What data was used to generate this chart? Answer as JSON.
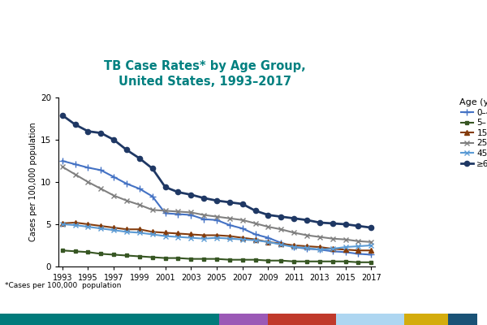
{
  "title": "TB Case Rates* by Age Group,\nUnited States, 1993–2017",
  "ylabel": "Cases per 100,000 population",
  "footnote": "*Cases per 100,000  population",
  "years": [
    1993,
    1994,
    1995,
    1996,
    1997,
    1998,
    1999,
    2000,
    2001,
    2002,
    2003,
    2004,
    2005,
    2006,
    2007,
    2008,
    2009,
    2010,
    2011,
    2012,
    2013,
    2014,
    2015,
    2016,
    2017
  ],
  "series": {
    "0–4": {
      "color": "#4472C4",
      "marker": "+",
      "ls": "-",
      "lw": 1.5,
      "ms": 6,
      "values": [
        12.5,
        12.1,
        11.7,
        11.4,
        10.6,
        9.8,
        9.2,
        8.3,
        6.3,
        6.2,
        6.1,
        5.6,
        5.5,
        4.9,
        4.5,
        3.8,
        3.4,
        2.8,
        2.3,
        2.1,
        2.0,
        1.8,
        1.7,
        1.5,
        1.4
      ]
    },
    "5–14": {
      "color": "#375623",
      "marker": "s",
      "ls": "-",
      "lw": 1.5,
      "ms": 3.5,
      "values": [
        1.9,
        1.8,
        1.7,
        1.5,
        1.4,
        1.3,
        1.2,
        1.1,
        1.0,
        1.0,
        0.9,
        0.9,
        0.9,
        0.8,
        0.8,
        0.8,
        0.7,
        0.7,
        0.6,
        0.6,
        0.6,
        0.6,
        0.6,
        0.5,
        0.5
      ]
    },
    "15–24": {
      "color": "#843C0C",
      "marker": "^",
      "ls": "-",
      "lw": 1.5,
      "ms": 4.5,
      "values": [
        5.1,
        5.2,
        5.0,
        4.8,
        4.6,
        4.4,
        4.4,
        4.1,
        4.0,
        3.9,
        3.8,
        3.7,
        3.7,
        3.6,
        3.4,
        3.2,
        2.9,
        2.7,
        2.5,
        2.4,
        2.3,
        2.1,
        2.0,
        1.9,
        1.9
      ]
    },
    "25–44": {
      "color": "#808080",
      "marker": "x",
      "ls": "-",
      "lw": 1.5,
      "ms": 4,
      "values": [
        11.8,
        10.9,
        10.0,
        9.2,
        8.4,
        7.8,
        7.3,
        6.7,
        6.6,
        6.5,
        6.4,
        6.1,
        5.9,
        5.7,
        5.5,
        5.1,
        4.7,
        4.4,
        4.0,
        3.7,
        3.5,
        3.3,
        3.2,
        3.0,
        2.9
      ]
    },
    "45–64": {
      "color": "#4472C4",
      "marker": "x",
      "ls": "-",
      "lw": 1.5,
      "ms": 5,
      "values": [
        5.0,
        4.9,
        4.7,
        4.5,
        4.3,
        4.1,
        4.0,
        3.8,
        3.6,
        3.5,
        3.4,
        3.3,
        3.4,
        3.3,
        3.2,
        3.1,
        2.9,
        2.6,
        2.3,
        2.2,
        2.0,
        2.1,
        2.3,
        2.4,
        2.5
      ]
    },
    "≥65": {
      "color": "#1F3864",
      "marker": "o",
      "ls": "-",
      "lw": 2.0,
      "ms": 4.5,
      "values": [
        17.9,
        16.8,
        16.0,
        15.8,
        15.0,
        13.8,
        12.8,
        11.6,
        9.4,
        8.8,
        8.5,
        8.1,
        7.8,
        7.6,
        7.4,
        6.6,
        6.1,
        5.9,
        5.7,
        5.5,
        5.2,
        5.1,
        5.0,
        4.8,
        4.6
      ]
    }
  },
  "xlim": [
    1993,
    2017
  ],
  "ylim": [
    0,
    20
  ],
  "yticks": [
    0,
    5,
    10,
    15,
    20
  ],
  "xticks": [
    1993,
    1995,
    1997,
    1999,
    2001,
    2003,
    2005,
    2007,
    2009,
    2011,
    2013,
    2015,
    2017
  ],
  "legend_title": "Age (yrs.)",
  "title_color": "#008080",
  "bar_colors": [
    "#007B7B",
    "#9B59B6",
    "#C0392B",
    "#AED6F1",
    "#D4AC0D",
    "#1A5276"
  ],
  "bar_widths": [
    0.45,
    0.1,
    0.14,
    0.14,
    0.09,
    0.06
  ]
}
